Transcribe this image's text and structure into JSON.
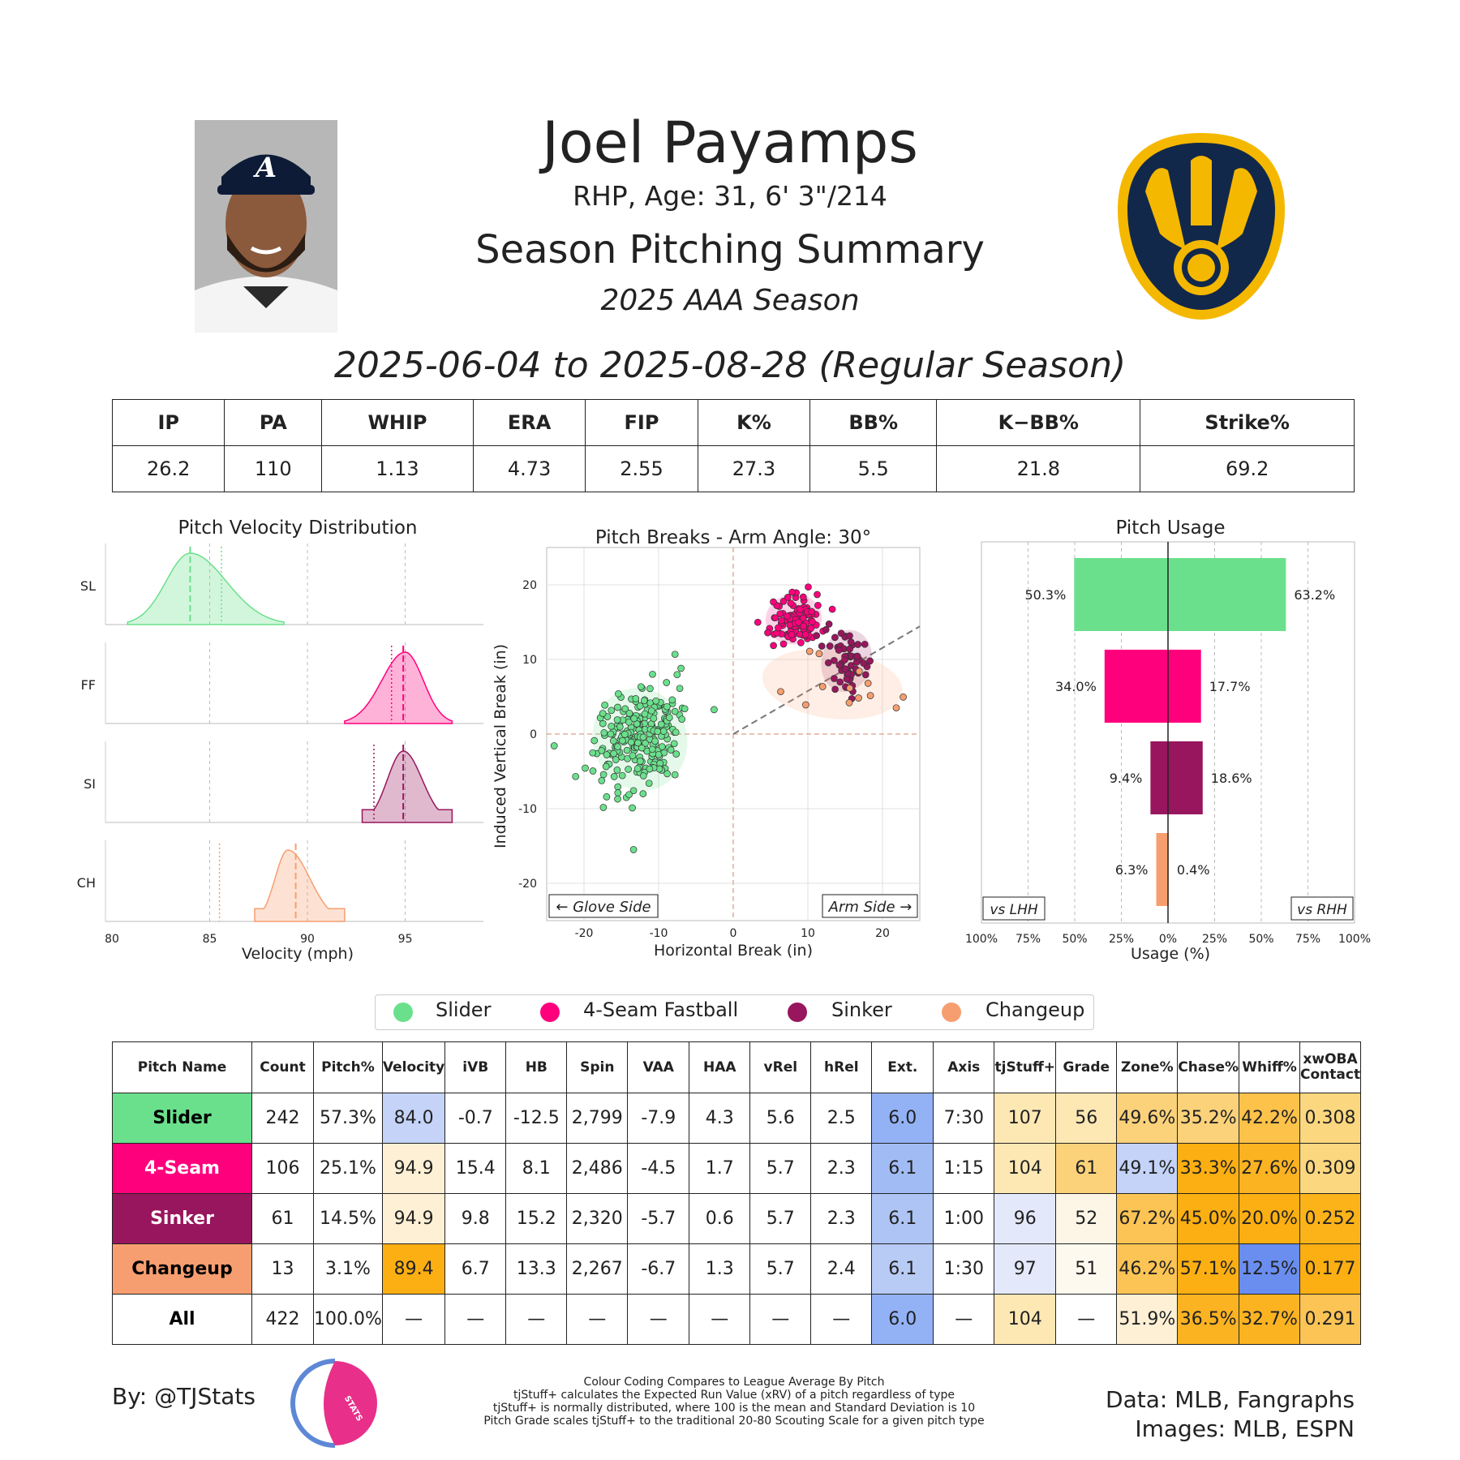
{
  "header": {
    "name": "Joel Payamps",
    "bio": "RHP, Age: 31, 6' 3\"/214",
    "title": "Season Pitching Summary",
    "season": "2025 AAA Season",
    "date_range": "2025-06-04 to 2025-08-28 (Regular Season)"
  },
  "colors": {
    "slider": "#6be08c",
    "fourseam": "#ff007d",
    "sinker": "#98165d",
    "changeup": "#f79e70"
  },
  "stats": {
    "headers": [
      "IP",
      "PA",
      "WHIP",
      "ERA",
      "FIP",
      "K%",
      "BB%",
      "K−BB%",
      "Strike%"
    ],
    "values": [
      "26.2",
      "110",
      "1.13",
      "4.73",
      "2.55",
      "27.3",
      "5.5",
      "21.8",
      "69.2"
    ]
  },
  "legend": {
    "items": [
      "Slider",
      "4-Seam Fastball",
      "Sinker",
      "Changeup"
    ]
  },
  "chart_data": [
    {
      "type": "area",
      "title": "Pitch Velocity Distribution",
      "xlabel": "Velocity (mph)",
      "xlim": [
        80,
        99
      ],
      "xticks": [
        "80",
        "85",
        "90",
        "95"
      ],
      "series": [
        {
          "name": "SL",
          "mean": 84.0,
          "league_mean": 85.6,
          "min": 80.8,
          "max": 88.8,
          "peak_x": 84.0
        },
        {
          "name": "FF",
          "mean": 94.9,
          "league_mean": 94.3,
          "min": 91.9,
          "max": 97.4,
          "peak_x": 95.0
        },
        {
          "name": "SI",
          "mean": 94.9,
          "league_mean": 93.4,
          "min": 92.8,
          "max": 97.4,
          "peak_x": 94.9
        },
        {
          "name": "CH",
          "mean": 89.4,
          "league_mean": 85.5,
          "min": 87.3,
          "max": 91.9,
          "peak_x": 89.0
        }
      ]
    },
    {
      "type": "scatter",
      "title": "Pitch Breaks - Arm Angle: 30°",
      "xlabel": "Horizontal Break (in)",
      "ylabel": "Induced Vertical Break (in)",
      "xlim": [
        -25,
        25
      ],
      "ylim": [
        -25,
        25
      ],
      "xticks": [
        "-20",
        "-10",
        "0",
        "10",
        "20"
      ],
      "yticks": [
        "20",
        "10",
        "0",
        "-10",
        "-20"
      ],
      "glove_label": "← Glove Side",
      "arm_label": "Arm Side →",
      "arm_angle_deg": 30,
      "series": [
        {
          "name": "Slider",
          "center": [
            -12.5,
            -0.7
          ],
          "spread": [
            3.0,
            3.3
          ],
          "n": 242
        },
        {
          "name": "4-Seam Fastball",
          "center": [
            8.1,
            15.4
          ],
          "spread": [
            1.8,
            1.6
          ],
          "n": 106
        },
        {
          "name": "Sinker",
          "center": [
            15.2,
            9.8
          ],
          "spread": [
            1.6,
            2.0
          ],
          "n": 61
        },
        {
          "name": "Changeup",
          "center": [
            13.3,
            6.7
          ],
          "spread": [
            4.5,
            2.2
          ],
          "n": 13
        }
      ]
    },
    {
      "type": "bar",
      "title": "Pitch Usage",
      "xlabel": "Usage (%)",
      "xticks": [
        "100%",
        "75%",
        "50%",
        "25%",
        "0%",
        "25%",
        "50%",
        "75%",
        "100%"
      ],
      "lhh_label": "vs LHH",
      "rhh_label": "vs RHH",
      "categories": [
        "Slider",
        "4-Seam Fastball",
        "Sinker",
        "Changeup"
      ],
      "series": [
        {
          "name": "vs LHH",
          "values": [
            50.3,
            34.0,
            9.4,
            6.3
          ]
        },
        {
          "name": "vs RHH",
          "values": [
            63.2,
            17.7,
            18.6,
            0.4
          ]
        }
      ],
      "labels_lhh": [
        "50.3%",
        "34.0%",
        "9.4%",
        "6.3%"
      ],
      "labels_rhh": [
        "63.2%",
        "17.7%",
        "18.6%",
        "0.4%"
      ]
    }
  ],
  "table": {
    "headers": [
      "Pitch Name",
      "Count",
      "Pitch%",
      "Velocity",
      "iVB",
      "HB",
      "Spin",
      "VAA",
      "HAA",
      "vRel",
      "hRel",
      "Ext.",
      "Axis",
      "tjStuff+",
      "Grade",
      "Zone%",
      "Chase%",
      "Whiff%",
      "xwOBA Contact"
    ],
    "rows": [
      {
        "name": "Slider",
        "cells": [
          "242",
          "57.3%",
          "84.0",
          "-0.7",
          "-12.5",
          "2,799",
          "-7.9",
          "4.3",
          "5.6",
          "2.5",
          "6.0",
          "7:30",
          "107",
          "56",
          "49.6%",
          "35.2%",
          "42.2%",
          "0.308"
        ],
        "cell_colors": [
          "",
          "",
          "#c4d3f7",
          "",
          "",
          "",
          "",
          "",
          "",
          "",
          "#93b2f6",
          "",
          "#fde8b4",
          "#fde8b4",
          "#fbd27a",
          "#fbd27a",
          "#fdc24a",
          "#fbd77f"
        ]
      },
      {
        "name": "4-Seam",
        "cells": [
          "106",
          "25.1%",
          "94.9",
          "15.4",
          "8.1",
          "2,486",
          "-4.5",
          "1.7",
          "5.7",
          "2.3",
          "6.1",
          "1:15",
          "104",
          "61",
          "49.1%",
          "33.3%",
          "27.6%",
          "0.309"
        ],
        "cell_colors": [
          "",
          "",
          "#fdf0d5",
          "",
          "",
          "",
          "",
          "",
          "",
          "",
          "#a1bcf5",
          "",
          "#fde8b4",
          "#fbd27a",
          "#c4d3f7",
          "#fcaf12",
          "#fcb322",
          "#fbd77f"
        ]
      },
      {
        "name": "Sinker",
        "cells": [
          "61",
          "14.5%",
          "94.9",
          "9.8",
          "15.2",
          "2,320",
          "-5.7",
          "0.6",
          "5.7",
          "2.3",
          "6.1",
          "1:00",
          "96",
          "52",
          "67.2%",
          "45.0%",
          "20.0%",
          "0.252"
        ],
        "cell_colors": [
          "",
          "",
          "#fdf0d5",
          "",
          "",
          "",
          "",
          "",
          "",
          "",
          "#adc4f4",
          "",
          "#e3e9fb",
          "#fdf6e6",
          "#fbc454",
          "#fcaf12",
          "#fcaf12",
          "#fbb319"
        ]
      },
      {
        "name": "Changeup",
        "cells": [
          "13",
          "3.1%",
          "89.4",
          "6.7",
          "13.3",
          "2,267",
          "-6.7",
          "1.3",
          "5.7",
          "2.4",
          "6.1",
          "1:30",
          "97",
          "51",
          "46.2%",
          "57.1%",
          "12.5%",
          "0.177"
        ],
        "cell_colors": [
          "",
          "",
          "#fcaf12",
          "",
          "",
          "",
          "",
          "",
          "",
          "",
          "#b7cbf4",
          "",
          "#e3e9fb",
          "#fdf9ee",
          "#fbc454",
          "#fcaf12",
          "#6a8ef0",
          "#fcaf12"
        ]
      },
      {
        "name": "All",
        "cells": [
          "422",
          "100.0%",
          "—",
          "—",
          "—",
          "—",
          "—",
          "—",
          "—",
          "—",
          "6.0",
          "—",
          "104",
          "—",
          "51.9%",
          "36.5%",
          "32.7%",
          "0.291"
        ],
        "cell_colors": [
          "",
          "",
          "",
          "",
          "",
          "",
          "",
          "",
          "",
          "",
          "#93b2f6",
          "",
          "#fde8b4",
          "",
          "#fdf0d5",
          "#fcb322",
          "#fcb322",
          "#fbc454"
        ]
      }
    ]
  },
  "footer": {
    "byline": "By: @TJStats",
    "logo_text": "STATS",
    "notes": [
      "Colour Coding Compares to League Average By Pitch",
      "tjStuff+ calculates the Expected Run Value (xRV) of a pitch regardless of type",
      "tjStuff+ is normally distributed, where 100 is the mean and Standard Deviation is 10",
      "Pitch Grade scales tjStuff+ to the traditional 20-80 Scouting Scale for a given pitch type"
    ],
    "data_source": "Data: MLB, Fangraphs",
    "images_source": "Images: MLB, ESPN"
  }
}
